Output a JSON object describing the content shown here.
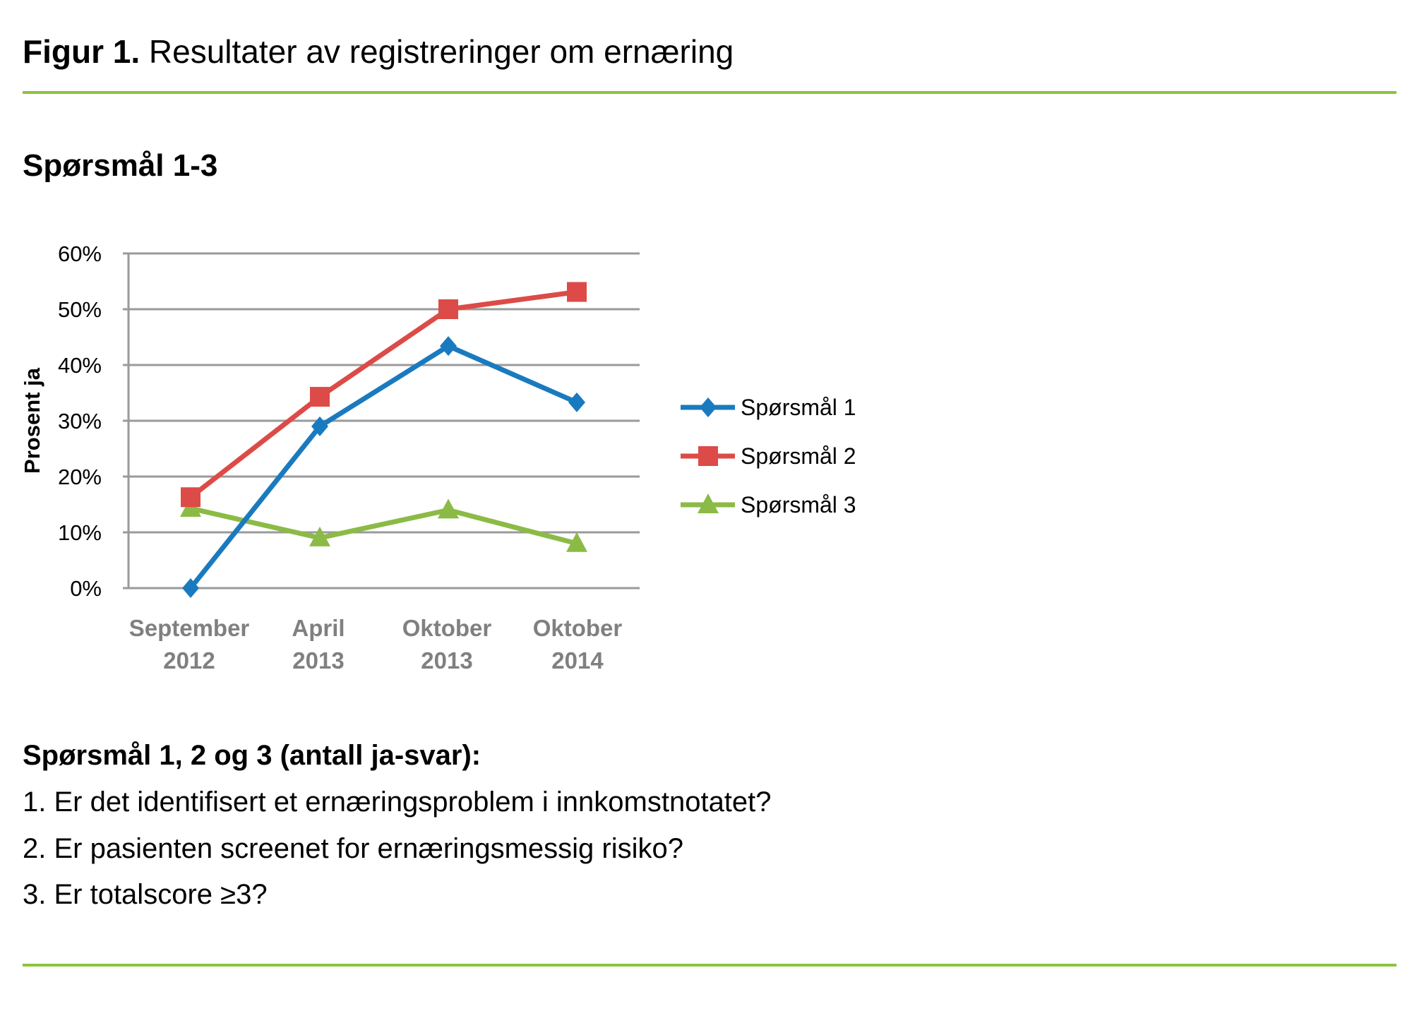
{
  "figure": {
    "label": "Figur 1.",
    "title": "Resultater av registreringer om ernæring",
    "subtitle": "Spørsmål 1-3"
  },
  "chart_data": {
    "type": "line",
    "title": "Spørsmål 1-3",
    "ylabel": "Prosent ja",
    "xlabel": "",
    "ylim": [
      0,
      60
    ],
    "yticks": [
      "0%",
      "10%",
      "20%",
      "30%",
      "40%",
      "50%",
      "60%"
    ],
    "ytick_values": [
      0,
      10,
      20,
      30,
      40,
      50,
      60
    ],
    "grid": true,
    "legend_position": "right",
    "categories": [
      [
        "September",
        "2012"
      ],
      [
        "April",
        "2013"
      ],
      [
        "Oktober",
        "2013"
      ],
      [
        "Oktober",
        "2014"
      ]
    ],
    "series": [
      {
        "name": "Spørsmål 1",
        "color": "#1a7abf",
        "marker": "diamond",
        "values": [
          0,
          29,
          43.4,
          33.3
        ]
      },
      {
        "name": "Spørsmål 2",
        "color": "#dc4b47",
        "marker": "square",
        "values": [
          16.3,
          34.3,
          50,
          53.1
        ]
      },
      {
        "name": "Spørsmål 3",
        "color": "#8bbb46",
        "marker": "triangle",
        "values": [
          14.3,
          9,
          14,
          8
        ]
      }
    ]
  },
  "notes": {
    "heading": "Spørsmål 1, 2 og 3 (antall ja-svar):",
    "items": [
      "1. Er det identifisert et ernæringsproblem i innkomstnotatet?",
      "2. Er pasienten screenet for ernæringsmessig risiko?",
      "3. Er totalscore ≥3?"
    ]
  },
  "colors": {
    "accent_rule": "#8cc43f",
    "grid": "#9a9a9a",
    "tick_text": "#808080"
  }
}
